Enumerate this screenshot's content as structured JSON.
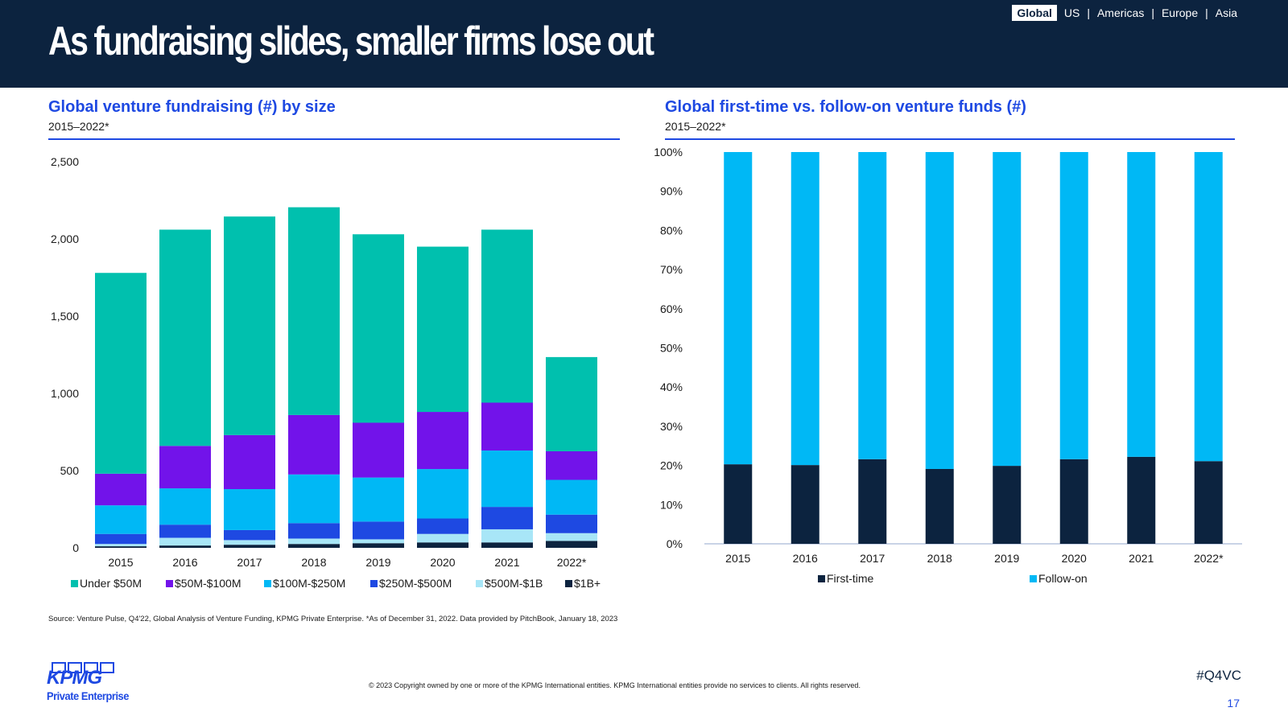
{
  "header": {
    "title": "As fundraising slides, smaller firms lose out",
    "regions": [
      "Global",
      "US",
      "Americas",
      "Europe",
      "Asia"
    ],
    "active_region": "Global"
  },
  "left_panel": {
    "title": "Global venture fundraising (#) by size",
    "subtitle": "2015–2022*"
  },
  "right_panel": {
    "title": "Global first-time vs. follow-on venture funds (#)",
    "subtitle": "2015–2022*"
  },
  "chart_data": [
    {
      "type": "bar",
      "stacked": true,
      "categories": [
        "2015",
        "2016",
        "2017",
        "2018",
        "2019",
        "2020",
        "2021",
        "2022*"
      ],
      "ylim": [
        0,
        2500
      ],
      "yticks": [
        0,
        500,
        1000,
        1500,
        2000,
        2500
      ],
      "ytick_labels": [
        "0",
        "500",
        "1,000",
        "1,500",
        "2,000",
        "2,500"
      ],
      "legend_position": "bottom",
      "grid": false,
      "series": [
        {
          "name": "$1B+",
          "color": "#0c233f",
          "values": [
            10,
            15,
            20,
            25,
            30,
            35,
            35,
            45
          ]
        },
        {
          "name": "$500M-$1B",
          "color": "#a8e6f7",
          "values": [
            15,
            50,
            30,
            35,
            25,
            55,
            85,
            50
          ]
        },
        {
          "name": "$250M-$500M",
          "color": "#1e49e2",
          "values": [
            65,
            85,
            65,
            100,
            115,
            100,
            145,
            120
          ]
        },
        {
          "name": "$100M-$250M",
          "color": "#00b8f5",
          "values": [
            185,
            235,
            265,
            315,
            285,
            320,
            365,
            225
          ]
        },
        {
          "name": "$50M-$100M",
          "color": "#7213ea",
          "values": [
            205,
            275,
            350,
            385,
            355,
            370,
            310,
            185
          ]
        },
        {
          "name": "Under $50M",
          "color": "#00c0ae",
          "values": [
            1300,
            1400,
            1415,
            1345,
            1220,
            1070,
            1120,
            610
          ]
        }
      ],
      "legend_order": [
        "Under $50M",
        "$50M-$100M",
        "$100M-$250M",
        "$250M-$500M",
        "$500M-$1B",
        "$1B+"
      ]
    },
    {
      "type": "bar",
      "stacked": true,
      "percent": true,
      "categories": [
        "2015",
        "2016",
        "2017",
        "2018",
        "2019",
        "2020",
        "2021",
        "2022*"
      ],
      "ylim": [
        0,
        100
      ],
      "yticks": [
        0,
        10,
        20,
        30,
        40,
        50,
        60,
        70,
        80,
        90,
        100
      ],
      "ytick_labels": [
        "0%",
        "10%",
        "20%",
        "30%",
        "40%",
        "50%",
        "60%",
        "70%",
        "80%",
        "90%",
        "100%"
      ],
      "legend_position": "bottom",
      "grid": false,
      "series": [
        {
          "name": "First-time",
          "color": "#0c233f",
          "values": [
            20.3,
            20.1,
            21.6,
            19.1,
            19.9,
            21.6,
            22.2,
            21.1
          ]
        },
        {
          "name": "Follow-on",
          "color": "#00b8f5",
          "values": [
            79.7,
            79.9,
            78.4,
            80.9,
            80.1,
            78.4,
            77.8,
            78.9
          ]
        }
      ],
      "legend_order": [
        "First-time",
        "Follow-on"
      ]
    }
  ],
  "footer": {
    "source": "Source: Venture Pulse, Q4'22, Global Analysis of Venture Funding, KPMG Private Enterprise. *As of December 31, 2022. Data provided by PitchBook, January 18, 2023",
    "copyright": "© 2023 Copyright owned by one or more of the KPMG International entities. KPMG International entities provide no services to clients. All rights reserved.",
    "hashtag": "#Q4VC",
    "page_number": "17",
    "logo_word": "KPMG",
    "logo_sub": "Private Enterprise"
  }
}
